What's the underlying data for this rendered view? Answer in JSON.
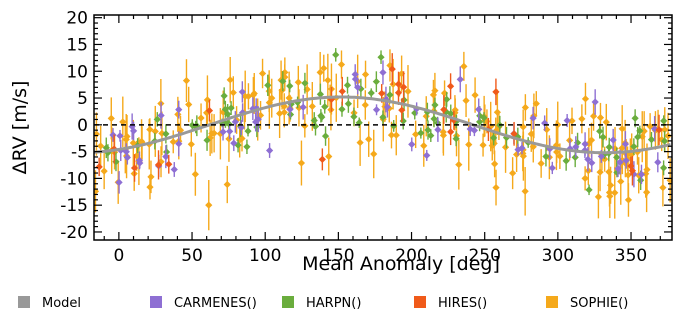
{
  "chart_data": {
    "type": "scatter",
    "xlabel": "Mean Anomaly [deg]",
    "ylabel": "ΔRV [m/s]",
    "xlim": [
      -17,
      378
    ],
    "ylim": [
      -21.5,
      20.5
    ],
    "x_ticks": [
      0,
      50,
      100,
      150,
      200,
      250,
      300,
      350
    ],
    "y_ticks": [
      -20,
      -15,
      -10,
      -5,
      0,
      5,
      10,
      15,
      20
    ],
    "grid": false,
    "zero_line": true,
    "legend_position": "bottom",
    "model": {
      "name": "Model",
      "color": "#999999",
      "amplitude": 5.2,
      "phase_deg": 152,
      "offset": 0
    },
    "series": [
      {
        "name": "CARMENES()",
        "color": "#8e6fd3"
      },
      {
        "name": "HARPN()",
        "color": "#6aad3d"
      },
      {
        "name": "HIRES()",
        "color": "#f05a1a"
      },
      {
        "name": "SOPHIE()",
        "color": "#f5a91b"
      }
    ],
    "points_per_series": [
      70,
      95,
      25,
      200
    ]
  }
}
